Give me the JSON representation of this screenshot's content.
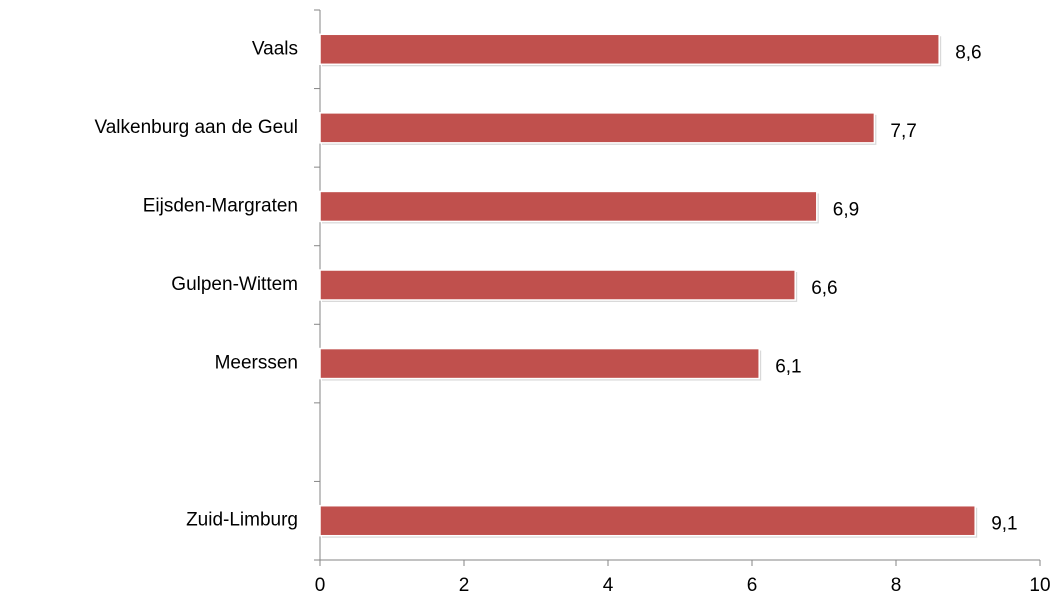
{
  "chart_data": {
    "type": "bar",
    "orientation": "horizontal",
    "categories": [
      "Vaals",
      "Valkenburg aan de Geul",
      "Eijsden-Margraten",
      "Gulpen-Wittem",
      "Meerssen",
      null,
      "Zuid-Limburg"
    ],
    "values": [
      8.6,
      7.7,
      6.9,
      6.6,
      6.1,
      null,
      9.1
    ],
    "value_labels": [
      "8,6",
      "7,7",
      "6,9",
      "6,6",
      "6,1",
      null,
      "9,1"
    ],
    "color": "#c0504d",
    "xlim": [
      0,
      10
    ],
    "xticks": [
      0,
      2,
      4,
      6,
      8,
      10
    ],
    "grid": false
  }
}
